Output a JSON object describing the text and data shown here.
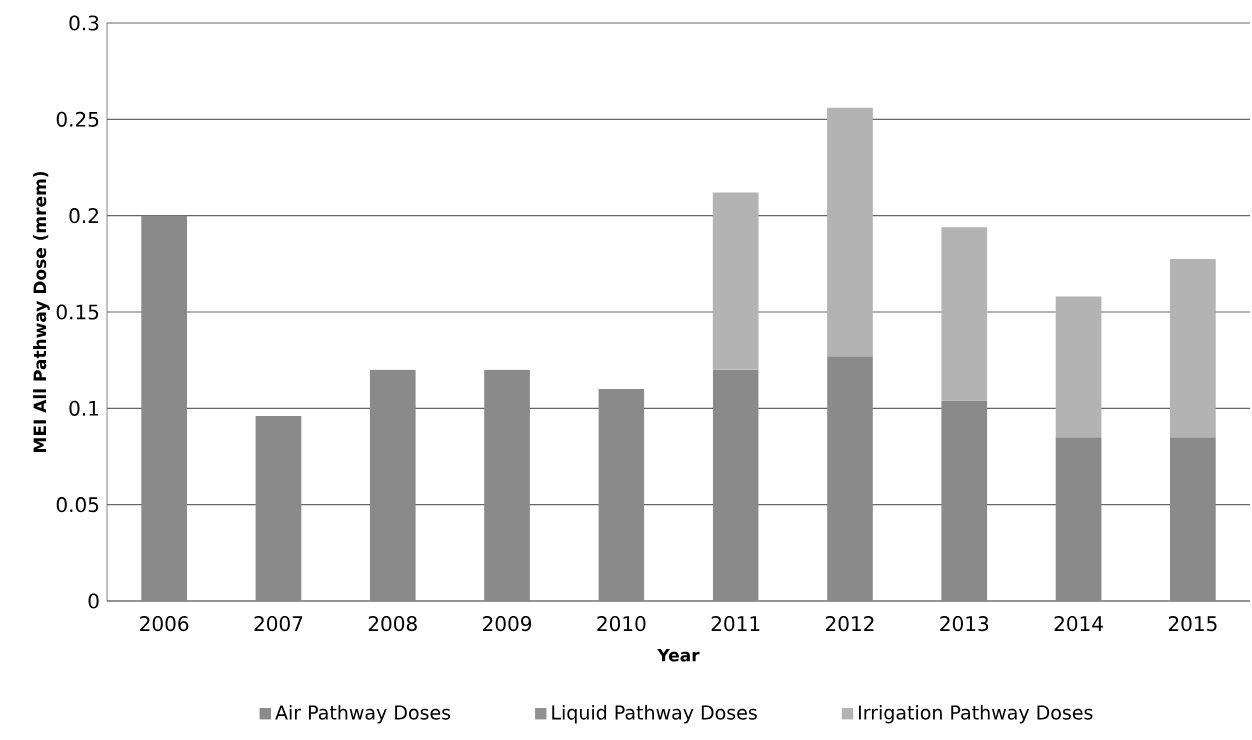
{
  "chart_data": {
    "type": "bar",
    "stacked": true,
    "xlabel": "Year",
    "ylabel": "MEI All Pathway Dose (mrem)",
    "categories": [
      "2006",
      "2007",
      "2008",
      "2009",
      "2010",
      "2011",
      "2012",
      "2013",
      "2014",
      "2015"
    ],
    "series": [
      {
        "name": "Air Pathway Doses",
        "color": "#8a8a8a",
        "values": [
          0.2,
          0.096,
          0.12,
          0.12,
          0.11,
          0.12,
          0.127,
          0.104,
          0.085,
          0.085
        ]
      },
      {
        "name": "Liquid Pathway Doses",
        "color": "#909090",
        "values": [
          null,
          null,
          null,
          null,
          null,
          null,
          null,
          null,
          null,
          null
        ]
      },
      {
        "name": "Irrigation Pathway Doses",
        "color": "#b3b3b3",
        "values": [
          null,
          null,
          null,
          null,
          null,
          0.092,
          0.129,
          0.09,
          0.073,
          0.0925
        ]
      }
    ],
    "ylim": [
      0,
      0.3
    ],
    "yticks": [
      0,
      0.05,
      0.1,
      0.15,
      0.2,
      0.25,
      0.3
    ],
    "grid": "y",
    "legend": "bottom"
  }
}
